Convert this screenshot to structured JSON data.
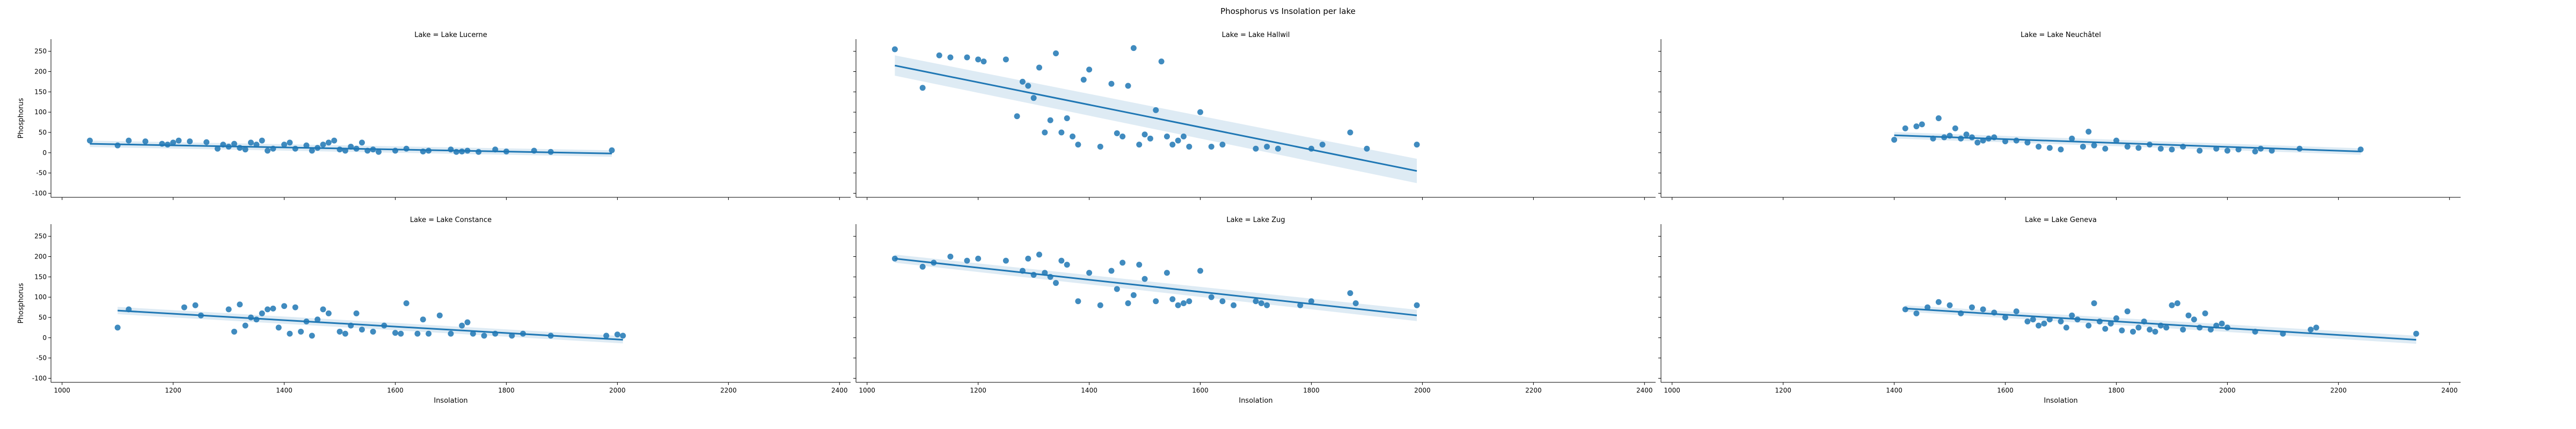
{
  "figure": {
    "suptitle": "Phosphorus vs Insolation per lake"
  },
  "style": {
    "point_color": "#1f77b4",
    "band_color": "#1f77b4",
    "axis_color": "#000000"
  },
  "chart_data": {
    "type": "scatter",
    "facet_grid": {
      "rows": 2,
      "cols": 3,
      "sharex": true,
      "sharey": true
    },
    "xlabel": "Insolation",
    "ylabel": "Phosphorus",
    "xlim": [
      980,
      2420
    ],
    "ylim": [
      -110,
      280
    ],
    "xticks": [
      1000,
      1200,
      1400,
      1600,
      1800,
      2000,
      2200,
      2400
    ],
    "yticks": [
      -100,
      -50,
      0,
      50,
      100,
      150,
      200,
      250
    ],
    "regression": true,
    "panels": [
      {
        "title": "Lake = Lake Lucerne",
        "fit": {
          "x0": 1050,
          "y0": 22,
          "x1": 1990,
          "y1": -2,
          "ci0": 8,
          "ci1": 8
        },
        "x": [
          1050,
          1100,
          1120,
          1150,
          1180,
          1190,
          1200,
          1210,
          1230,
          1260,
          1280,
          1290,
          1300,
          1310,
          1320,
          1330,
          1340,
          1350,
          1360,
          1370,
          1380,
          1400,
          1410,
          1420,
          1440,
          1450,
          1460,
          1470,
          1480,
          1490,
          1500,
          1510,
          1520,
          1530,
          1540,
          1550,
          1560,
          1570,
          1600,
          1620,
          1650,
          1660,
          1700,
          1710,
          1720,
          1730,
          1750,
          1780,
          1800,
          1850,
          1880,
          1990
        ],
        "y": [
          30,
          18,
          30,
          28,
          22,
          20,
          25,
          30,
          28,
          26,
          10,
          20,
          15,
          22,
          12,
          8,
          25,
          20,
          30,
          5,
          10,
          20,
          25,
          10,
          18,
          5,
          12,
          20,
          25,
          30,
          8,
          5,
          15,
          10,
          25,
          5,
          8,
          2,
          5,
          10,
          3,
          5,
          8,
          2,
          3,
          5,
          2,
          8,
          3,
          5,
          2,
          6
        ]
      },
      {
        "title": "Lake = Lake Hallwil",
        "fit": {
          "x0": 1050,
          "y0": 215,
          "x1": 1990,
          "y1": -45,
          "ci0": 25,
          "ci1": 30
        },
        "x": [
          1050,
          1100,
          1130,
          1150,
          1180,
          1200,
          1210,
          1250,
          1270,
          1280,
          1290,
          1300,
          1310,
          1320,
          1330,
          1340,
          1350,
          1360,
          1370,
          1380,
          1390,
          1400,
          1420,
          1440,
          1450,
          1460,
          1470,
          1480,
          1490,
          1500,
          1510,
          1520,
          1530,
          1540,
          1550,
          1560,
          1570,
          1580,
          1600,
          1620,
          1640,
          1700,
          1720,
          1740,
          1800,
          1820,
          1870,
          1900,
          1990
        ],
        "y": [
          255,
          160,
          240,
          235,
          235,
          230,
          225,
          230,
          90,
          175,
          165,
          135,
          210,
          50,
          80,
          245,
          50,
          85,
          40,
          20,
          180,
          205,
          15,
          170,
          48,
          40,
          165,
          258,
          20,
          45,
          35,
          105,
          225,
          40,
          20,
          30,
          40,
          15,
          100,
          15,
          20,
          10,
          15,
          10,
          10,
          20,
          50,
          10,
          20
        ]
      },
      {
        "title": "Lake = Lake Neuchâtel",
        "fit": {
          "x0": 1400,
          "y0": 43,
          "x1": 2240,
          "y1": 3,
          "ci0": 8,
          "ci1": 8
        },
        "x": [
          1400,
          1420,
          1440,
          1450,
          1470,
          1480,
          1490,
          1500,
          1510,
          1520,
          1530,
          1540,
          1550,
          1560,
          1570,
          1580,
          1600,
          1620,
          1640,
          1660,
          1680,
          1700,
          1720,
          1740,
          1750,
          1760,
          1780,
          1800,
          1820,
          1840,
          1860,
          1880,
          1900,
          1920,
          1950,
          1980,
          2000,
          2020,
          2050,
          2060,
          2080,
          2130,
          2240
        ],
        "y": [
          32,
          60,
          65,
          70,
          35,
          85,
          38,
          42,
          60,
          35,
          45,
          38,
          25,
          30,
          35,
          38,
          28,
          30,
          25,
          15,
          12,
          8,
          35,
          15,
          52,
          18,
          10,
          30,
          15,
          12,
          20,
          10,
          8,
          15,
          5,
          10,
          5,
          8,
          3,
          10,
          5,
          10,
          8
        ]
      },
      {
        "title": "Lake = Lake Constance",
        "fit": {
          "x0": 1100,
          "y0": 67,
          "x1": 2010,
          "y1": -5,
          "ci0": 9,
          "ci1": 9
        },
        "x": [
          1100,
          1120,
          1220,
          1240,
          1250,
          1300,
          1310,
          1320,
          1330,
          1340,
          1350,
          1360,
          1370,
          1380,
          1390,
          1400,
          1410,
          1420,
          1430,
          1440,
          1450,
          1460,
          1470,
          1480,
          1500,
          1510,
          1520,
          1530,
          1540,
          1560,
          1580,
          1600,
          1610,
          1620,
          1640,
          1650,
          1660,
          1680,
          1700,
          1720,
          1730,
          1740,
          1760,
          1780,
          1810,
          1830,
          1880,
          1980,
          2000,
          2010
        ],
        "y": [
          25,
          70,
          75,
          80,
          55,
          70,
          15,
          82,
          30,
          50,
          45,
          60,
          70,
          72,
          25,
          78,
          10,
          75,
          15,
          40,
          5,
          45,
          70,
          60,
          15,
          10,
          30,
          60,
          20,
          15,
          30,
          12,
          10,
          85,
          10,
          45,
          10,
          55,
          10,
          30,
          38,
          10,
          5,
          10,
          5,
          10,
          5,
          5,
          8,
          5
        ]
      },
      {
        "title": "Lake = Lake Zug",
        "fit": {
          "x0": 1050,
          "y0": 195,
          "x1": 1990,
          "y1": 55,
          "ci0": 10,
          "ci1": 14
        },
        "x": [
          1050,
          1100,
          1120,
          1150,
          1180,
          1200,
          1250,
          1280,
          1290,
          1300,
          1310,
          1320,
          1330,
          1340,
          1350,
          1360,
          1380,
          1400,
          1420,
          1440,
          1450,
          1460,
          1470,
          1480,
          1490,
          1500,
          1520,
          1540,
          1550,
          1560,
          1570,
          1580,
          1600,
          1620,
          1640,
          1660,
          1700,
          1710,
          1720,
          1780,
          1800,
          1870,
          1880,
          1990
        ],
        "y": [
          195,
          175,
          185,
          200,
          190,
          195,
          190,
          165,
          195,
          155,
          205,
          160,
          150,
          135,
          190,
          180,
          90,
          160,
          80,
          165,
          120,
          185,
          85,
          105,
          180,
          145,
          90,
          160,
          95,
          80,
          85,
          90,
          165,
          100,
          90,
          80,
          90,
          85,
          80,
          80,
          90,
          110,
          85,
          80
        ]
      },
      {
        "title": "Lake = Lake Geneva",
        "fit": {
          "x0": 1420,
          "y0": 72,
          "x1": 2340,
          "y1": -5,
          "ci0": 8,
          "ci1": 10
        },
        "x": [
          1420,
          1440,
          1460,
          1480,
          1500,
          1520,
          1540,
          1560,
          1580,
          1600,
          1620,
          1640,
          1650,
          1660,
          1670,
          1680,
          1700,
          1710,
          1720,
          1730,
          1750,
          1760,
          1770,
          1780,
          1790,
          1800,
          1810,
          1820,
          1830,
          1840,
          1850,
          1860,
          1870,
          1880,
          1890,
          1900,
          1910,
          1920,
          1930,
          1940,
          1950,
          1960,
          1970,
          1980,
          1990,
          2000,
          2050,
          2100,
          2150,
          2160,
          2340
        ],
        "y": [
          70,
          60,
          75,
          88,
          80,
          60,
          75,
          70,
          62,
          50,
          65,
          40,
          45,
          30,
          35,
          45,
          40,
          25,
          55,
          45,
          30,
          85,
          40,
          22,
          35,
          48,
          18,
          65,
          15,
          25,
          40,
          20,
          15,
          30,
          25,
          80,
          85,
          20,
          55,
          45,
          25,
          60,
          20,
          30,
          35,
          25,
          15,
          10,
          20,
          25,
          10
        ]
      }
    ]
  }
}
